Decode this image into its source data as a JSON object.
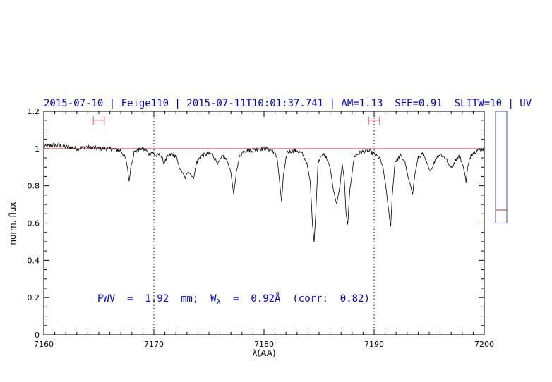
{
  "chart_data": {
    "type": "line",
    "title": "2015-07-10 | Feige110 | 2015-07-11T10:01:37.741 | AM=1.13  SEE=0.91  SLITW=10 | UV",
    "xlabel": "λ(AA)",
    "ylabel": "norm. flux",
    "xlim": [
      7160,
      7200
    ],
    "ylim": [
      0,
      1.2
    ],
    "xticks": [
      7160,
      7170,
      7180,
      7190,
      7200
    ],
    "yticks": [
      0,
      0.2,
      0.4,
      0.6,
      0.8,
      1,
      1.2
    ],
    "grid": false,
    "reference_lines": [
      {
        "orientation": "vertical",
        "x": 7170,
        "style": "dotted"
      },
      {
        "orientation": "vertical",
        "x": 7190,
        "style": "dotted"
      },
      {
        "orientation": "horizontal",
        "y": 1.0,
        "color": "#e05050"
      }
    ],
    "intervals": [
      {
        "x": [
          7164.5,
          7165.5
        ],
        "y": 1.15,
        "color": "#e05050"
      },
      {
        "x": [
          7189.5,
          7190.5
        ],
        "y": 1.15,
        "color": "#e05050"
      }
    ],
    "annotation": {
      "parts": [
        "PWV  =  1.92  mm;  W",
        "λ",
        "  =  0.92Å  (corr:  0.82)"
      ]
    },
    "side_gauge": {
      "range": [
        0.6,
        1.2
      ],
      "value": 0.67,
      "frame_color": "#4040ff",
      "marker_color": "#cc2222"
    },
    "series": [
      {
        "color": "#000000",
        "x": [
          7160.0,
          7161.0,
          7162.0,
          7163.0,
          7164.0,
          7165.0,
          7166.0,
          7167.0,
          7167.4,
          7167.6,
          7167.75,
          7167.9,
          7168.2,
          7168.8,
          7169.3,
          7169.6,
          7169.8,
          7170.2,
          7170.6,
          7170.9,
          7171.2,
          7171.6,
          7172.0,
          7172.3,
          7172.6,
          7172.85,
          7173.1,
          7173.35,
          7173.6,
          7173.9,
          7174.3,
          7174.8,
          7175.3,
          7175.8,
          7176.3,
          7176.7,
          7177.0,
          7177.25,
          7177.5,
          7177.8,
          7178.2,
          7178.8,
          7179.5,
          7180.2,
          7180.8,
          7181.2,
          7181.45,
          7181.6,
          7181.75,
          7182.1,
          7182.6,
          7183.0,
          7183.5,
          7183.9,
          7184.2,
          7184.4,
          7184.55,
          7184.7,
          7184.9,
          7185.2,
          7185.6,
          7186.0,
          7186.3,
          7186.6,
          7186.9,
          7187.1,
          7187.3,
          7187.45,
          7187.6,
          7187.8,
          7188.2,
          7188.8,
          7189.4,
          7190.0,
          7190.5,
          7190.8,
          7191.1,
          7191.35,
          7191.5,
          7191.65,
          7191.9,
          7192.4,
          7192.8,
          7193.1,
          7193.5,
          7193.7,
          7194.0,
          7194.4,
          7194.8,
          7195.1,
          7195.3,
          7195.6,
          7196.0,
          7196.5,
          7196.8,
          7197.1,
          7197.4,
          7197.8,
          7198.2,
          7198.35,
          7198.5,
          7198.8,
          7199.3,
          7200.0
        ],
        "y": [
          1.01,
          1.02,
          1.01,
          1.0,
          1.01,
          1.0,
          1.0,
          0.99,
          0.95,
          0.9,
          0.82,
          0.9,
          0.98,
          1.0,
          0.99,
          0.97,
          0.98,
          0.96,
          0.97,
          0.92,
          0.95,
          0.97,
          0.96,
          0.9,
          0.87,
          0.84,
          0.88,
          0.86,
          0.84,
          0.93,
          0.96,
          0.97,
          0.97,
          0.92,
          0.96,
          0.93,
          0.87,
          0.75,
          0.88,
          0.96,
          0.99,
          0.99,
          1.0,
          1.0,
          0.99,
          0.95,
          0.8,
          0.71,
          0.85,
          0.98,
          0.99,
          0.99,
          0.97,
          0.92,
          0.82,
          0.6,
          0.5,
          0.65,
          0.92,
          0.97,
          0.96,
          0.9,
          0.78,
          0.7,
          0.8,
          0.92,
          0.83,
          0.65,
          0.59,
          0.78,
          0.96,
          0.98,
          0.99,
          0.97,
          0.95,
          0.9,
          0.78,
          0.65,
          0.58,
          0.75,
          0.93,
          0.96,
          0.93,
          0.84,
          0.76,
          0.86,
          0.95,
          0.97,
          0.92,
          0.88,
          0.9,
          0.95,
          0.97,
          0.95,
          0.91,
          0.9,
          0.94,
          0.96,
          0.88,
          0.82,
          0.9,
          0.97,
          0.99,
          1.0
        ]
      }
    ]
  }
}
